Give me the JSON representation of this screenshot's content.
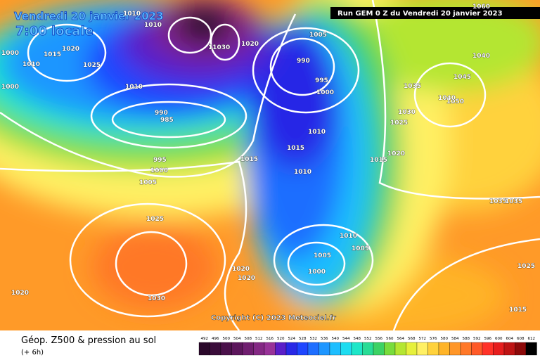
{
  "header": {
    "date": "Vendredi 20 janvier 2023",
    "local_time": "7:00 locale",
    "run": "Run GEM 0 Z du Vendredi 20 janvier 2023"
  },
  "copyright": "Copyright (C) 2023 Meteociel.fr",
  "footer": {
    "title": "Géop. Z500 & pression au sol",
    "lead": "(+ 6h)"
  },
  "isobar_labels": [
    1060,
    1010,
    1010,
    1000,
    1015,
    1020,
    1010,
    1025,
    11030,
    1020,
    1005,
    990,
    995,
    1000,
    1010,
    1000,
    990,
    985,
    1040,
    1045,
    1035,
    1050,
    1040,
    1030,
    1025,
    1010,
    1015,
    1020,
    1015,
    1015,
    995,
    1000,
    1010,
    1005,
    1035,
    1035,
    1025,
    1010,
    1005,
    1005,
    1000,
    1020,
    1020,
    1025,
    1020,
    1030,
    1015
  ],
  "colorbar": [
    {
      "label": 492,
      "color": "#2a082a"
    },
    {
      "label": 496,
      "color": "#3a0c3a"
    },
    {
      "label": 500,
      "color": "#4a104a"
    },
    {
      "label": 504,
      "color": "#5c165c"
    },
    {
      "label": 508,
      "color": "#701e70"
    },
    {
      "label": 512,
      "color": "#842884"
    },
    {
      "label": 516,
      "color": "#983298"
    },
    {
      "label": 520,
      "color": "#5a1ec8"
    },
    {
      "label": 524,
      "color": "#2828e6"
    },
    {
      "label": 528,
      "color": "#1e46ff"
    },
    {
      "label": 532,
      "color": "#1e6eff"
    },
    {
      "label": 536,
      "color": "#1e96ff"
    },
    {
      "label": 540,
      "color": "#1ebeff"
    },
    {
      "label": 544,
      "color": "#1edcf0"
    },
    {
      "label": 548,
      "color": "#1ee6c8"
    },
    {
      "label": 552,
      "color": "#28dc96"
    },
    {
      "label": 556,
      "color": "#3cd264"
    },
    {
      "label": 560,
      "color": "#78dc3c"
    },
    {
      "label": 564,
      "color": "#b4e632"
    },
    {
      "label": 568,
      "color": "#e6f03c"
    },
    {
      "label": 572,
      "color": "#fff064"
    },
    {
      "label": 576,
      "color": "#ffd23c"
    },
    {
      "label": 580,
      "color": "#ffb428"
    },
    {
      "label": 584,
      "color": "#ff9628"
    },
    {
      "label": 588,
      "color": "#ff7828"
    },
    {
      "label": 592,
      "color": "#ff5a28"
    },
    {
      "label": 596,
      "color": "#ff3228"
    },
    {
      "label": 600,
      "color": "#e61e1e"
    },
    {
      "label": 604,
      "color": "#be1414"
    },
    {
      "label": 608,
      "color": "#8c0a0a"
    },
    {
      "label": 612,
      "color": "#000000"
    }
  ]
}
